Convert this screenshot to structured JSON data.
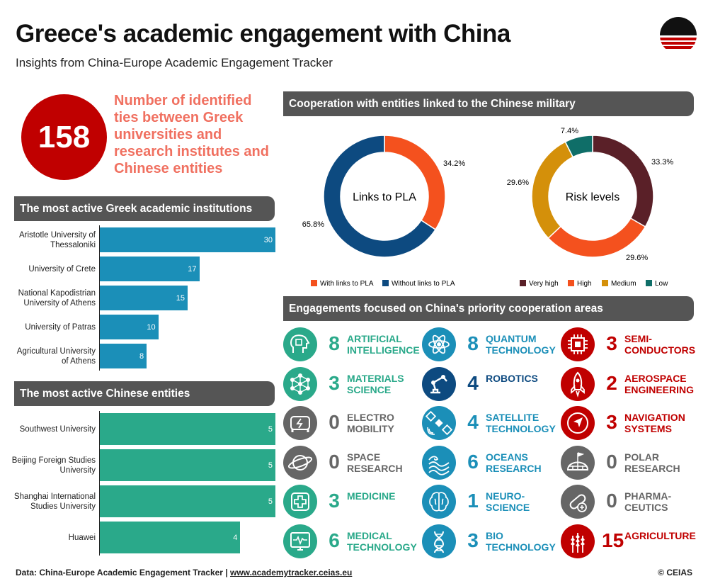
{
  "header": {
    "title": "Greece's academic engagement with China",
    "subtitle": "Insights from China-Europe Academic Engagement Tracker"
  },
  "ties": {
    "count": "158",
    "text": "Number of identified ties between Greek universities and research institutes and Chinese entities"
  },
  "colors": {
    "red": "#c00000",
    "blue": "#1b8fb8",
    "green": "#2aa98a",
    "navy": "#0d4a80",
    "teal": "#2aa98a",
    "grey": "#666666",
    "salmon": "#f07060"
  },
  "sections": {
    "greek": "The most active Greek academic institutions",
    "chinese": "The most active Chinese entities",
    "military": "Cooperation with entities linked to the Chinese military",
    "areas": "Engagements focused on China's priority cooperation areas"
  },
  "chart_data": [
    {
      "type": "bar",
      "title": "The most active Greek academic institutions",
      "categories": [
        "Aristotle University of Thessaloniki",
        "University of Crete",
        "National Kapodistrian University of Athens",
        "University of Patras",
        "Agricultural University of Athens"
      ],
      "values": [
        30,
        17,
        15,
        10,
        8
      ],
      "value_labels": [
        "30",
        "17",
        "15",
        "10",
        "8"
      ],
      "max": 30
    },
    {
      "type": "bar",
      "title": "The most active Chinese entities",
      "categories": [
        "Southwest University",
        "Beijing Foreign Studies University",
        "Shanghai International Studies University",
        "Huawei"
      ],
      "values": [
        5,
        5,
        5,
        4
      ],
      "value_labels": [
        "5",
        "5",
        "5",
        "4"
      ],
      "max": 5
    },
    {
      "type": "pie",
      "title": "Links to PLA",
      "labels": [
        "With links to PLA",
        "Without links to PLA"
      ],
      "values": [
        34.2,
        65.8
      ],
      "value_labels": [
        "34.2%",
        "65.8%"
      ],
      "colors": [
        "#f4511e",
        "#0d4a80"
      ]
    },
    {
      "type": "pie",
      "title": "Risk levels",
      "labels": [
        "Very high",
        "High",
        "Medium",
        "Low"
      ],
      "values": [
        33.3,
        29.6,
        29.6,
        7.4
      ],
      "value_labels": [
        "33.3%",
        "29.6%",
        "29.6%",
        "7.4%"
      ],
      "colors": [
        "#5a2028",
        "#f4511e",
        "#d4900a",
        "#0f6e68"
      ]
    }
  ],
  "areas": [
    {
      "num": "8",
      "name": "ARTIFICIAL INTELLIGENCE",
      "color": "#2aa98a",
      "icon": "ai-head-icon"
    },
    {
      "num": "8",
      "name": "QUANTUM TECHNOLOGY",
      "color": "#1b8fb8",
      "icon": "atom-icon"
    },
    {
      "num": "3",
      "name": "SEMI-CONDUCTORS",
      "color": "#c00000",
      "icon": "chip-icon"
    },
    {
      "num": "3",
      "name": "MATERIALS SCIENCE",
      "color": "#2aa98a",
      "icon": "molecule-icon"
    },
    {
      "num": "4",
      "name": "ROBOTICS",
      "color": "#0d4a80",
      "icon": "robot-arm-icon"
    },
    {
      "num": "2",
      "name": "AEROSPACE ENGINEERING",
      "color": "#c00000",
      "icon": "rocket-icon"
    },
    {
      "num": "0",
      "name": "ELECTRO MOBILITY",
      "color": "#666666",
      "icon": "electric-car-icon"
    },
    {
      "num": "4",
      "name": "SATELLITE TECHNOLOGY",
      "color": "#1b8fb8",
      "icon": "satellite-icon"
    },
    {
      "num": "3",
      "name": "NAVIGATION SYSTEMS",
      "color": "#c00000",
      "icon": "navigation-icon"
    },
    {
      "num": "0",
      "name": "SPACE RESEARCH",
      "color": "#666666",
      "icon": "planet-icon"
    },
    {
      "num": "6",
      "name": "OCEANS RESEARCH",
      "color": "#1b8fb8",
      "icon": "waves-icon"
    },
    {
      "num": "0",
      "name": "POLAR RESEARCH",
      "color": "#666666",
      "icon": "igloo-icon"
    },
    {
      "num": "3",
      "name": "MEDICINE",
      "color": "#2aa98a",
      "icon": "medical-cross-icon"
    },
    {
      "num": "1",
      "name": "NEURO-SCIENCE",
      "color": "#1b8fb8",
      "icon": "brain-icon"
    },
    {
      "num": "0",
      "name": "PHARMA-CEUTICS",
      "color": "#666666",
      "icon": "pill-icon"
    },
    {
      "num": "6",
      "name": "MEDICAL TECHNOLOGY",
      "color": "#2aa98a",
      "icon": "heart-monitor-icon"
    },
    {
      "num": "3",
      "name": "BIO TECHNOLOGY",
      "color": "#1b8fb8",
      "icon": "dna-icon"
    },
    {
      "num": "15",
      "name": "AGRICULTURE",
      "color": "#c00000",
      "icon": "wheat-icon"
    }
  ],
  "footer": {
    "source": "Data: China-Europe Academic Engagement Tracker",
    "sep": " | ",
    "url": "www.academytracker.ceias.eu",
    "copyright": "© CEIAS"
  }
}
